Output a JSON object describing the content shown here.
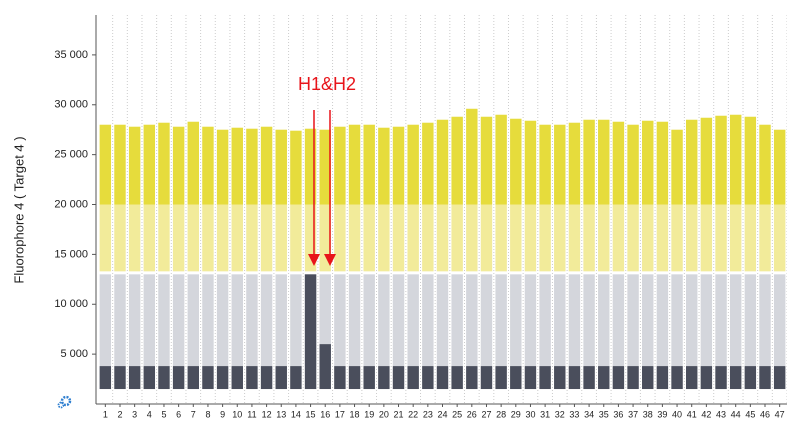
{
  "chart_data": {
    "type": "range",
    "y_label": "Fluorophore 4  ( Target 4 )",
    "annotation": "H1&H2",
    "categories": [
      "1",
      "2",
      "3",
      "4",
      "5",
      "6",
      "7",
      "8",
      "9",
      "10",
      "11",
      "12",
      "13",
      "14",
      "15",
      "16",
      "17",
      "18",
      "19",
      "20",
      "21",
      "22",
      "23",
      "24",
      "25",
      "26",
      "27",
      "28",
      "29",
      "30",
      "31",
      "32",
      "33",
      "34",
      "35",
      "36",
      "37",
      "38",
      "39",
      "40",
      "41",
      "42",
      "43",
      "44",
      "45",
      "46",
      "47"
    ],
    "ylim": [
      0,
      39000
    ],
    "yticks": [
      {
        "value": 5000,
        "label": "5 000"
      },
      {
        "value": 10000,
        "label": "10 000"
      },
      {
        "value": 15000,
        "label": "15 000"
      },
      {
        "value": 20000,
        "label": "20 000"
      },
      {
        "value": 25000,
        "label": "25 000"
      },
      {
        "value": 30000,
        "label": "30 000"
      },
      {
        "value": 35000,
        "label": "35 000"
      }
    ],
    "bands": [
      {
        "color": "#f2eb9a",
        "low": [
          13300,
          13300,
          13300,
          13300,
          13300,
          13300,
          13300,
          13300,
          13300,
          13300,
          13300,
          13300,
          13300,
          13300,
          13300,
          13300,
          13300,
          13300,
          13300,
          13300,
          13300,
          13300,
          13300,
          13300,
          13300,
          13300,
          13300,
          13300,
          13300,
          13300,
          13300,
          13300,
          13300,
          13300,
          13300,
          13300,
          13300,
          13300,
          13300,
          13300,
          13300,
          13300,
          13300,
          13300,
          13300,
          13300,
          13300
        ],
        "high": [
          20000,
          20000,
          20000,
          20000,
          20000,
          20000,
          20000,
          20000,
          20000,
          20000,
          20000,
          20000,
          20000,
          20000,
          20000,
          20000,
          20000,
          20000,
          20000,
          20000,
          20000,
          20000,
          20000,
          20000,
          20000,
          20000,
          20000,
          20000,
          20000,
          20000,
          20000,
          20000,
          20000,
          20000,
          20000,
          20000,
          20000,
          20000,
          20000,
          20000,
          20000,
          20000,
          20000,
          20000,
          20000,
          20000,
          20000
        ]
      },
      {
        "color": "#e6dc3c",
        "low": [
          20000,
          20000,
          20000,
          20000,
          20000,
          20000,
          20000,
          20000,
          20000,
          20000,
          20000,
          20000,
          20000,
          20000,
          20000,
          20000,
          20000,
          20000,
          20000,
          20000,
          20000,
          20000,
          20000,
          20000,
          20000,
          20000,
          20000,
          20000,
          20000,
          20000,
          20000,
          20000,
          20000,
          20000,
          20000,
          20000,
          20000,
          20000,
          20000,
          20000,
          20000,
          20000,
          20000,
          20000,
          20000,
          20000,
          20000
        ],
        "high": [
          28000,
          28000,
          27800,
          28000,
          28200,
          27800,
          28300,
          27800,
          27500,
          27700,
          27600,
          27800,
          27500,
          27400,
          27600,
          27500,
          27800,
          28000,
          28000,
          27700,
          27800,
          28000,
          28200,
          28500,
          28800,
          29600,
          28800,
          29000,
          28600,
          28400,
          28000,
          28000,
          28200,
          28500,
          28500,
          28300,
          28000,
          28400,
          28300,
          27500,
          28500,
          28700,
          28900,
          29000,
          28800,
          28000,
          27500
        ]
      },
      {
        "color": "#d4d6dc",
        "low": [
          3800,
          3800,
          3800,
          3800,
          3800,
          3800,
          3800,
          3800,
          3800,
          3800,
          3800,
          3800,
          3800,
          3800,
          3800,
          3800,
          3800,
          3800,
          3800,
          3800,
          3800,
          3800,
          3800,
          3800,
          3800,
          3800,
          3800,
          3800,
          3800,
          3800,
          3800,
          3800,
          3800,
          3800,
          3800,
          3800,
          3800,
          3800,
          3800,
          3800,
          3800,
          3800,
          3800,
          3800,
          3800,
          3800,
          3800
        ],
        "high": [
          13000,
          13000,
          13000,
          13000,
          13000,
          13000,
          13000,
          13000,
          13000,
          13000,
          13000,
          13000,
          13000,
          13000,
          13000,
          13000,
          13000,
          13000,
          13000,
          13000,
          13000,
          13000,
          13000,
          13000,
          13000,
          13000,
          13000,
          13000,
          13000,
          13000,
          13000,
          13000,
          13000,
          13000,
          13000,
          13000,
          13000,
          13000,
          13000,
          13000,
          13000,
          13000,
          13000,
          13000,
          13000,
          13000,
          13000
        ]
      },
      {
        "color": "#4a4e5c",
        "low": [
          1500,
          1500,
          1500,
          1500,
          1500,
          1500,
          1500,
          1500,
          1500,
          1500,
          1500,
          1500,
          1500,
          1500,
          1500,
          1500,
          1500,
          1500,
          1500,
          1500,
          1500,
          1500,
          1500,
          1500,
          1500,
          1500,
          1500,
          1500,
          1500,
          1500,
          1500,
          1500,
          1500,
          1500,
          1500,
          1500,
          1500,
          1500,
          1500,
          1500,
          1500,
          1500,
          1500,
          1500,
          1500,
          1500,
          1500
        ],
        "high": [
          3800,
          3800,
          3800,
          3800,
          3800,
          3800,
          3800,
          3800,
          3800,
          3800,
          3800,
          3800,
          3800,
          3800,
          13000,
          6000,
          3800,
          3800,
          3800,
          3800,
          3800,
          3800,
          3800,
          3800,
          3800,
          3800,
          3800,
          3800,
          3800,
          3800,
          3800,
          3800,
          3800,
          3800,
          3800,
          3800,
          3800,
          3800,
          3800,
          3800,
          3800,
          3800,
          3800,
          3800,
          3800,
          3800,
          3800
        ]
      }
    ]
  }
}
